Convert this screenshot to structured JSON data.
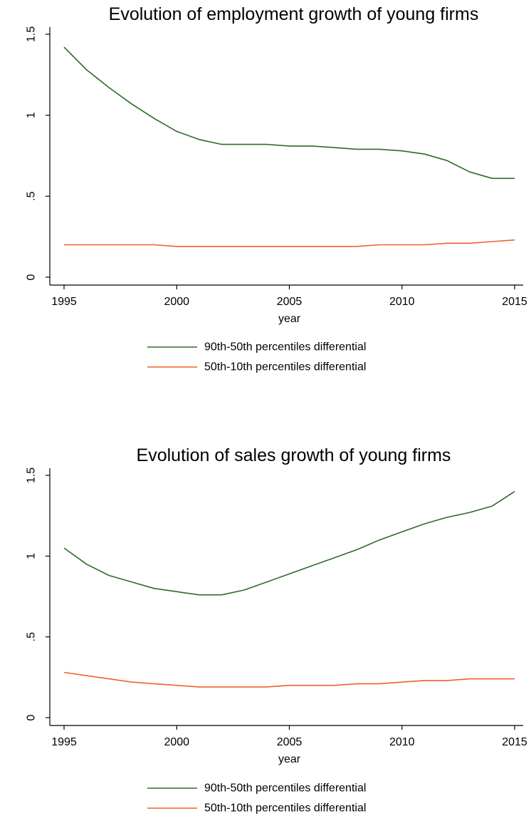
{
  "chart_data": [
    {
      "type": "line",
      "title": "Evolution of employment growth of young firms",
      "xlabel": "year",
      "ylabel": "",
      "xlim": [
        1995,
        2015
      ],
      "ylim": [
        0,
        1.5
      ],
      "x_ticks": [
        1995,
        2000,
        2005,
        2010,
        2015
      ],
      "x_tick_labels": [
        "1995",
        "2000",
        "2005",
        "2010",
        "2015"
      ],
      "y_ticks": [
        0,
        0.5,
        1,
        1.5
      ],
      "y_tick_labels": [
        "0",
        ".5",
        "1",
        "1.5"
      ],
      "grid": false,
      "legend_position": "bottom",
      "x": [
        1995,
        1996,
        1997,
        1998,
        1999,
        2000,
        2001,
        2002,
        2003,
        2004,
        2005,
        2006,
        2007,
        2008,
        2009,
        2010,
        2011,
        2012,
        2013,
        2014,
        2015
      ],
      "series": [
        {
          "name": "90th-50th percentiles differential",
          "color": "#2e6a2a",
          "values": [
            1.42,
            1.28,
            1.17,
            1.07,
            0.98,
            0.9,
            0.85,
            0.82,
            0.82,
            0.82,
            0.81,
            0.81,
            0.8,
            0.79,
            0.79,
            0.78,
            0.76,
            0.72,
            0.65,
            0.61,
            0.61
          ]
        },
        {
          "name": "50th-10th percentiles differential",
          "color": "#f0602c",
          "values": [
            0.2,
            0.2,
            0.2,
            0.2,
            0.2,
            0.19,
            0.19,
            0.19,
            0.19,
            0.19,
            0.19,
            0.19,
            0.19,
            0.19,
            0.2,
            0.2,
            0.2,
            0.21,
            0.21,
            0.22,
            0.23
          ]
        }
      ]
    },
    {
      "type": "line",
      "title": "Evolution of sales growth of young firms",
      "xlabel": "year",
      "ylabel": "",
      "xlim": [
        1995,
        2015
      ],
      "ylim": [
        0,
        1.5
      ],
      "x_ticks": [
        1995,
        2000,
        2005,
        2010,
        2015
      ],
      "x_tick_labels": [
        "1995",
        "2000",
        "2005",
        "2010",
        "2015"
      ],
      "y_ticks": [
        0,
        0.5,
        1,
        1.5
      ],
      "y_tick_labels": [
        "0",
        ".5",
        "1",
        "1.5"
      ],
      "grid": false,
      "legend_position": "bottom",
      "x": [
        1995,
        1996,
        1997,
        1998,
        1999,
        2000,
        2001,
        2002,
        2003,
        2004,
        2005,
        2006,
        2007,
        2008,
        2009,
        2010,
        2011,
        2012,
        2013,
        2014,
        2015
      ],
      "series": [
        {
          "name": "90th-50th percentiles differential",
          "color": "#2e6a2a",
          "values": [
            1.05,
            0.95,
            0.88,
            0.84,
            0.8,
            0.78,
            0.76,
            0.76,
            0.79,
            0.84,
            0.89,
            0.94,
            0.99,
            1.04,
            1.1,
            1.15,
            1.2,
            1.24,
            1.27,
            1.31,
            1.4
          ]
        },
        {
          "name": "50th-10th percentiles differential",
          "color": "#f0602c",
          "values": [
            0.28,
            0.26,
            0.24,
            0.22,
            0.21,
            0.2,
            0.19,
            0.19,
            0.19,
            0.19,
            0.2,
            0.2,
            0.2,
            0.21,
            0.21,
            0.22,
            0.23,
            0.23,
            0.24,
            0.24,
            0.24
          ]
        }
      ]
    }
  ]
}
